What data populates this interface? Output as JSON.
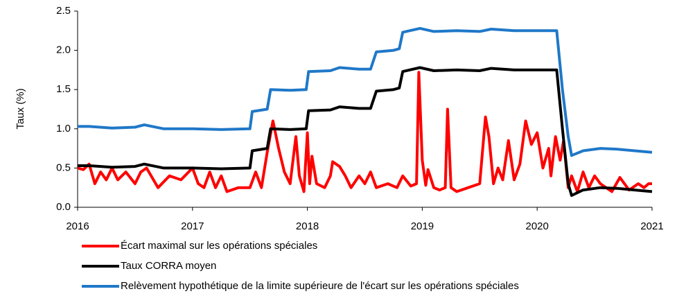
{
  "chart_data": {
    "type": "line",
    "y_label": "Taux (%)",
    "xlim": [
      2016,
      2021
    ],
    "xticks": [
      2016,
      2017,
      2018,
      2019,
      2020,
      2021
    ],
    "ylim": [
      0,
      2.5
    ],
    "yticks": [
      {
        "value": 0,
        "label": "0.0"
      },
      0.5,
      {
        "value": 1,
        "label": "1.0"
      },
      1.5,
      {
        "value": 2,
        "label": "2.0"
      },
      2.5
    ],
    "grid": false,
    "legend": "bottom",
    "series": [
      {
        "name": "Écart maximal sur les opérations spéciales",
        "color": "#ff0000",
        "x": [
          2016.0,
          2016.05,
          2016.1,
          2016.15,
          2016.2,
          2016.25,
          2016.3,
          2016.35,
          2016.42,
          2016.5,
          2016.55,
          2016.6,
          2016.7,
          2016.8,
          2016.9,
          2017.0,
          2017.05,
          2017.1,
          2017.15,
          2017.2,
          2017.25,
          2017.3,
          2017.4,
          2017.5,
          2017.55,
          2017.6,
          2017.65,
          2017.7,
          2017.75,
          2017.8,
          2017.85,
          2017.9,
          2017.93,
          2017.97,
          2018.0,
          2018.02,
          2018.04,
          2018.08,
          2018.15,
          2018.2,
          2018.22,
          2018.28,
          2018.33,
          2018.38,
          2018.45,
          2018.5,
          2018.55,
          2018.6,
          2018.7,
          2018.78,
          2018.83,
          2018.9,
          2018.95,
          2018.97,
          2019.0,
          2019.03,
          2019.05,
          2019.1,
          2019.15,
          2019.2,
          2019.22,
          2019.25,
          2019.3,
          2019.4,
          2019.5,
          2019.55,
          2019.58,
          2019.62,
          2019.66,
          2019.7,
          2019.75,
          2019.8,
          2019.85,
          2019.9,
          2019.95,
          2020.0,
          2020.05,
          2020.1,
          2020.12,
          2020.16,
          2020.2,
          2020.23,
          2020.27,
          2020.3,
          2020.35,
          2020.4,
          2020.45,
          2020.5,
          2020.55,
          2020.65,
          2020.72,
          2020.8,
          2020.88,
          2020.93,
          2020.97,
          2021.0
        ],
        "values": [
          0.5,
          0.48,
          0.55,
          0.3,
          0.45,
          0.35,
          0.5,
          0.35,
          0.45,
          0.3,
          0.45,
          0.5,
          0.25,
          0.4,
          0.35,
          0.5,
          0.3,
          0.25,
          0.45,
          0.25,
          0.4,
          0.2,
          0.25,
          0.25,
          0.45,
          0.25,
          0.7,
          1.1,
          0.75,
          0.45,
          0.3,
          0.9,
          0.4,
          0.2,
          0.95,
          0.3,
          0.65,
          0.3,
          0.25,
          0.4,
          0.58,
          0.52,
          0.4,
          0.25,
          0.4,
          0.3,
          0.45,
          0.25,
          0.3,
          0.25,
          0.4,
          0.27,
          0.3,
          1.72,
          0.6,
          0.28,
          0.48,
          0.25,
          0.22,
          0.25,
          1.25,
          0.25,
          0.2,
          0.25,
          0.3,
          1.15,
          0.9,
          0.3,
          0.5,
          0.35,
          0.85,
          0.35,
          0.55,
          1.1,
          0.8,
          0.95,
          0.5,
          0.75,
          0.4,
          0.9,
          0.6,
          0.85,
          0.25,
          0.4,
          0.2,
          0.45,
          0.25,
          0.4,
          0.3,
          0.2,
          0.38,
          0.22,
          0.3,
          0.25,
          0.3,
          0.3
        ]
      },
      {
        "name": "Taux CORRA moyen",
        "color": "#000000",
        "x": [
          2016.0,
          2016.1,
          2016.3,
          2016.5,
          2016.58,
          2016.75,
          2017.0,
          2017.25,
          2017.5,
          2017.52,
          2017.65,
          2017.68,
          2017.85,
          2017.99,
          2018.01,
          2018.2,
          2018.28,
          2018.45,
          2018.55,
          2018.6,
          2018.75,
          2018.8,
          2018.83,
          2018.98,
          2019.1,
          2019.3,
          2019.5,
          2019.6,
          2019.8,
          2020.0,
          2020.17,
          2020.22,
          2020.27,
          2020.3,
          2020.4,
          2020.55,
          2020.7,
          2020.85,
          2021.0
        ],
        "values": [
          0.53,
          0.53,
          0.51,
          0.52,
          0.55,
          0.5,
          0.5,
          0.49,
          0.5,
          0.72,
          0.75,
          1.0,
          0.99,
          1.0,
          1.23,
          1.24,
          1.28,
          1.26,
          1.26,
          1.48,
          1.5,
          1.52,
          1.73,
          1.78,
          1.74,
          1.75,
          1.74,
          1.77,
          1.75,
          1.75,
          1.75,
          1.0,
          0.3,
          0.15,
          0.22,
          0.25,
          0.24,
          0.22,
          0.2
        ]
      },
      {
        "name": "Relèvement hypothétique de la limite supérieure de l'écart sur les opérations spéciales",
        "color": "#1f78c8",
        "x": [
          2016.0,
          2016.1,
          2016.3,
          2016.5,
          2016.58,
          2016.75,
          2017.0,
          2017.25,
          2017.5,
          2017.52,
          2017.65,
          2017.68,
          2017.85,
          2017.99,
          2018.01,
          2018.2,
          2018.28,
          2018.45,
          2018.55,
          2018.6,
          2018.75,
          2018.8,
          2018.83,
          2018.98,
          2019.1,
          2019.3,
          2019.5,
          2019.6,
          2019.8,
          2020.0,
          2020.17,
          2020.22,
          2020.27,
          2020.3,
          2020.4,
          2020.55,
          2020.7,
          2020.85,
          2021.0
        ],
        "values": [
          1.03,
          1.03,
          1.01,
          1.02,
          1.05,
          1.0,
          1.0,
          0.99,
          1.0,
          1.22,
          1.25,
          1.5,
          1.49,
          1.5,
          1.73,
          1.74,
          1.78,
          1.76,
          1.76,
          1.98,
          2.0,
          2.02,
          2.23,
          2.28,
          2.24,
          2.25,
          2.24,
          2.27,
          2.25,
          2.25,
          2.25,
          1.5,
          0.9,
          0.66,
          0.72,
          0.75,
          0.74,
          0.72,
          0.7
        ]
      }
    ]
  }
}
